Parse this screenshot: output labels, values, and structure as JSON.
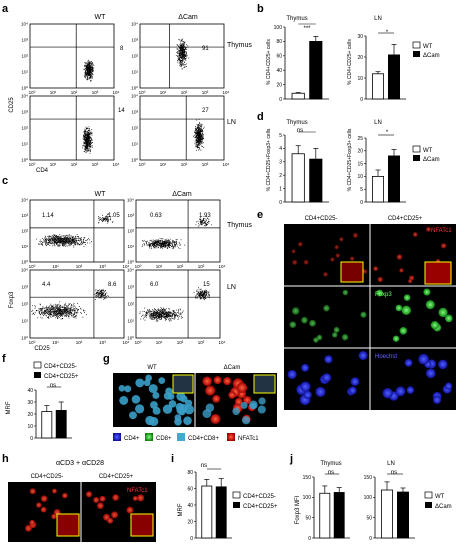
{
  "panels": {
    "a": {
      "letter": "a",
      "col_wt": "WT",
      "col_cam": "ΔCam",
      "row1": "Thymus",
      "row2": "LN",
      "q_wt1": "8",
      "q_cam1": "91",
      "q_wt2": "14",
      "q_cam2": "27",
      "ylabel": "CD25",
      "xlabel": "CD4",
      "ticks": [
        "10⁰",
        "10¹",
        "10²",
        "10³",
        "10⁴"
      ]
    },
    "b": {
      "letter": "b",
      "left_title": "Thymus",
      "right_title": "LN",
      "ylabel_left": "% CD4+CD25+ cells",
      "ylabel_right": "% CD4+CD25+ cells",
      "sig_left": "***",
      "sig_right": "*",
      "legend": [
        "WT",
        "ΔCam"
      ]
    },
    "c": {
      "letter": "c",
      "col_wt": "WT",
      "col_cam": "ΔCam",
      "row1": "Thymus",
      "row2": "LN",
      "q1": [
        "1.14",
        "1.05",
        "0.63",
        "1.93"
      ],
      "q2": [
        "4.4",
        "8.6",
        "6.0",
        "15"
      ],
      "ylabel": "Foxp3",
      "xlabel": "CD25"
    },
    "d": {
      "letter": "d",
      "left_title": "Thymus",
      "right_title": "LN",
      "sig_left": "ns",
      "sig_right": "*",
      "ylabel_left": "% CD4+CD25+Foxp3+ cells",
      "ylabel_right": "% CD4+CD25+Foxp3+ cells",
      "legend": [
        "WT",
        "ΔCam"
      ]
    },
    "e": {
      "letter": "e",
      "col1": "CD4+CD25-",
      "col2": "CD4+CD25+",
      "row1": "NFATc1",
      "row2": "Foxp3",
      "row3": "Hoechst"
    },
    "f": {
      "letter": "f",
      "legend": [
        "CD4+CD25-",
        "CD4+CD25+"
      ],
      "sig": "ns",
      "ylabel": "MRF"
    },
    "g": {
      "letter": "g",
      "left": "WT",
      "right": "ΔCam",
      "legend": [
        "CD4+",
        "CD8+",
        "CD4+CD8+",
        "NFATc1"
      ]
    },
    "h": {
      "letter": "h",
      "title": "αCD3 + αCD28",
      "col1": "CD4+CD25-",
      "col2": "CD4+CD25+",
      "label": "NFATc1"
    },
    "i": {
      "letter": "i",
      "legend": [
        "CD4+CD25-",
        "CD4+CD25+"
      ],
      "sig": "ns",
      "ylabel": "MRF"
    },
    "j": {
      "letter": "j",
      "left_title": "Thymus",
      "right_title": "LN",
      "sig_left": "ns",
      "sig_right": "ns",
      "ylabel": "Foxp3 MFI",
      "legend": [
        "WT",
        "ΔCam"
      ]
    }
  },
  "chart_data": [
    {
      "type": "bar",
      "title": "Thymus",
      "ylabel": "% CD4+CD25+ cells",
      "categories": [
        "WT",
        "ΔCam"
      ],
      "values": [
        8,
        80
      ],
      "ylim": [
        0,
        100
      ],
      "yticks": [
        0,
        20,
        40,
        60,
        80,
        100
      ]
    },
    {
      "type": "bar",
      "title": "LN",
      "ylabel": "% CD4+CD25+ cells",
      "categories": [
        "WT",
        "ΔCam"
      ],
      "values": [
        12,
        21
      ],
      "ylim": [
        0,
        30
      ],
      "yticks": [
        0,
        10,
        20,
        30
      ]
    },
    {
      "type": "bar",
      "title": "Thymus",
      "ylabel": "% CD4+CD25+Foxp3+ cells",
      "categories": [
        "WT",
        "ΔCam"
      ],
      "values": [
        3.6,
        3.2
      ],
      "ylim": [
        0,
        5
      ],
      "yticks": [
        0,
        1,
        2,
        3,
        4,
        5
      ]
    },
    {
      "type": "bar",
      "title": "LN",
      "ylabel": "% CD4+CD25+Foxp3+ cells",
      "categories": [
        "WT",
        "ΔCam"
      ],
      "values": [
        10,
        18
      ],
      "ylim": [
        0,
        25
      ],
      "yticks": [
        0,
        5,
        10,
        15,
        20,
        25
      ]
    },
    {
      "type": "bar",
      "ylabel": "MRF",
      "categories": [
        "CD4+CD25-",
        "CD4+CD25+"
      ],
      "values": [
        22,
        23
      ],
      "ylim": [
        0,
        40
      ],
      "yticks": [
        0,
        10,
        20,
        30,
        40
      ]
    },
    {
      "type": "bar",
      "ylabel": "MRF",
      "categories": [
        "CD4+CD25-",
        "CD4+CD25+"
      ],
      "values": [
        63,
        62
      ],
      "ylim": [
        0,
        80
      ],
      "yticks": [
        0,
        20,
        40,
        60,
        80
      ]
    },
    {
      "type": "bar",
      "title": "Thymus",
      "ylabel": "Foxp3 MFI",
      "categories": [
        "WT",
        "ΔCam"
      ],
      "values": [
        110,
        112
      ],
      "ylim": [
        0,
        150
      ],
      "yticks": [
        0,
        50,
        100,
        150
      ]
    },
    {
      "type": "bar",
      "title": "LN",
      "categories": [
        "WT",
        "ΔCam"
      ],
      "values": [
        118,
        113
      ],
      "ylim": [
        0,
        150
      ],
      "yticks": [
        0,
        50,
        100,
        150
      ]
    }
  ]
}
